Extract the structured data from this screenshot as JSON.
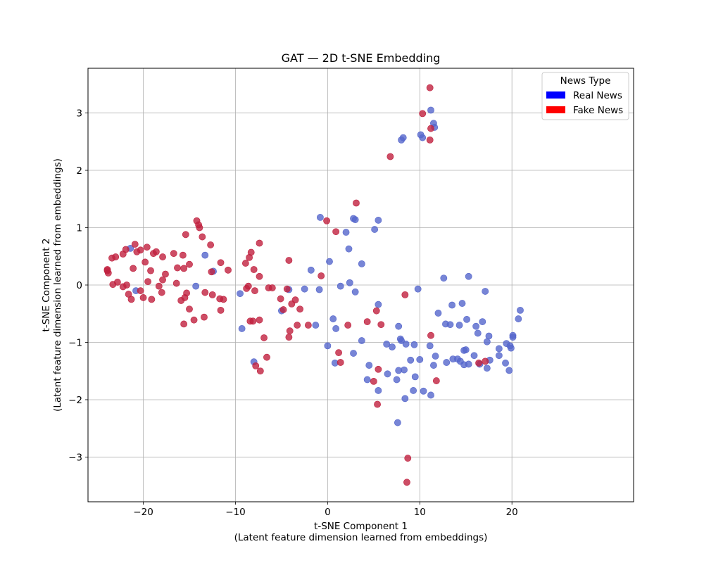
{
  "chart_data": {
    "type": "scatter",
    "title": "GAT — 2D t-SNE Embedding",
    "xlabel": "t-SNE Component 1",
    "xlabel_sub": "(Latent feature dimension learned from embeddings)",
    "ylabel": "t-SNE Component 2",
    "ylabel_sub": "(Latent feature dimension learned from embeddings)",
    "xlim": [
      -26,
      33.2
    ],
    "ylim": [
      -3.78,
      3.78
    ],
    "xticks": [
      -20,
      -10,
      0,
      10,
      20
    ],
    "yticks": [
      -3,
      -2,
      -1,
      0,
      1,
      2,
      3
    ],
    "grid": true,
    "legend": {
      "title": "News Type",
      "placement": "top-right",
      "entries": [
        {
          "label": "Real News",
          "color": "#0000ff"
        },
        {
          "label": "Fake News",
          "color": "#ff0000"
        }
      ]
    },
    "marker_colors": {
      "real": "#5566cc",
      "fake": "#c0213f"
    },
    "series": [
      {
        "name": "Real News",
        "points": [
          [
            -21.4,
            0.64
          ],
          [
            -20.8,
            -0.1
          ],
          [
            -14.3,
            -0.02
          ],
          [
            -13.3,
            0.52
          ],
          [
            -12.4,
            0.24
          ],
          [
            -9.5,
            -0.15
          ],
          [
            -9.3,
            -0.76
          ],
          [
            -8.0,
            -1.34
          ],
          [
            -4.2,
            -0.08
          ],
          [
            -5.0,
            -0.45
          ],
          [
            -2.5,
            -0.07
          ],
          [
            -1.8,
            0.26
          ],
          [
            -1.3,
            -0.7
          ],
          [
            -0.8,
            1.18
          ],
          [
            -0.9,
            -0.08
          ],
          [
            0.2,
            0.41
          ],
          [
            0.0,
            -1.06
          ],
          [
            0.6,
            -0.59
          ],
          [
            0.8,
            -1.36
          ],
          [
            0.9,
            -0.76
          ],
          [
            1.4,
            -0.02
          ],
          [
            2.0,
            0.92
          ],
          [
            2.3,
            0.63
          ],
          [
            2.4,
            0.04
          ],
          [
            2.8,
            1.16
          ],
          [
            3.0,
            1.14
          ],
          [
            3.0,
            -0.12
          ],
          [
            2.8,
            -1.19
          ],
          [
            3.7,
            0.37
          ],
          [
            3.7,
            -0.97
          ],
          [
            4.3,
            -1.65
          ],
          [
            4.5,
            -1.4
          ],
          [
            5.1,
            0.97
          ],
          [
            5.5,
            1.13
          ],
          [
            5.5,
            -0.34
          ],
          [
            5.5,
            -1.84
          ],
          [
            6.4,
            -1.03
          ],
          [
            6.5,
            -1.55
          ],
          [
            7.0,
            -1.08
          ],
          [
            7.5,
            -1.65
          ],
          [
            7.6,
            -2.4
          ],
          [
            7.7,
            -0.72
          ],
          [
            7.7,
            -1.49
          ],
          [
            7.9,
            -0.94
          ],
          [
            8.0,
            -0.97
          ],
          [
            8.3,
            -1.48
          ],
          [
            8.5,
            -1.03
          ],
          [
            8.4,
            -1.98
          ],
          [
            9.0,
            -1.31
          ],
          [
            9.3,
            -1.84
          ],
          [
            9.5,
            -1.6
          ],
          [
            9.4,
            -1.04
          ],
          [
            9.8,
            -0.07
          ],
          [
            10.0,
            -1.3
          ],
          [
            10.4,
            -1.85
          ],
          [
            11.1,
            -1.06
          ],
          [
            11.2,
            -1.92
          ],
          [
            11.5,
            -1.4
          ],
          [
            11.7,
            -1.24
          ],
          [
            12.0,
            -0.49
          ],
          [
            12.6,
            0.12
          ],
          [
            12.8,
            -0.68
          ],
          [
            12.9,
            -1.35
          ],
          [
            13.3,
            -0.69
          ],
          [
            13.5,
            -0.35
          ],
          [
            13.6,
            -1.29
          ],
          [
            14.1,
            -1.29
          ],
          [
            14.3,
            -0.7
          ],
          [
            14.4,
            -1.33
          ],
          [
            14.6,
            -0.32
          ],
          [
            14.8,
            -1.39
          ],
          [
            14.8,
            -1.14
          ],
          [
            15.0,
            -1.13
          ],
          [
            15.1,
            -0.6
          ],
          [
            15.3,
            -1.38
          ],
          [
            15.3,
            0.15
          ],
          [
            15.9,
            -1.23
          ],
          [
            16.1,
            -0.72
          ],
          [
            16.3,
            -0.84
          ],
          [
            16.5,
            -1.38
          ],
          [
            16.8,
            -0.64
          ],
          [
            17.1,
            -0.11
          ],
          [
            17.3,
            -1.45
          ],
          [
            17.3,
            -0.99
          ],
          [
            17.5,
            -0.89
          ],
          [
            17.6,
            -1.31
          ],
          [
            18.6,
            -1.11
          ],
          [
            18.6,
            -1.23
          ],
          [
            19.3,
            -1.36
          ],
          [
            19.4,
            -1.02
          ],
          [
            19.7,
            -1.49
          ],
          [
            19.8,
            -1.06
          ],
          [
            19.9,
            -1.1
          ],
          [
            20.1,
            -0.91
          ],
          [
            20.1,
            -0.88
          ],
          [
            20.7,
            -0.59
          ],
          [
            20.9,
            -0.44
          ],
          [
            8.0,
            2.53
          ],
          [
            8.2,
            2.57
          ],
          [
            10.1,
            2.62
          ],
          [
            10.3,
            2.57
          ],
          [
            11.2,
            3.05
          ],
          [
            11.5,
            2.82
          ],
          [
            11.6,
            2.75
          ]
        ]
      },
      {
        "name": "Fake News",
        "points": [
          [
            -23.9,
            0.25
          ],
          [
            -23.8,
            0.21
          ],
          [
            -23.9,
            0.27
          ],
          [
            -23.4,
            0.47
          ],
          [
            -23.0,
            0.49
          ],
          [
            -23.3,
            0.01
          ],
          [
            -22.8,
            0.05
          ],
          [
            -22.2,
            0.54
          ],
          [
            -21.9,
            0.62
          ],
          [
            -22.2,
            -0.03
          ],
          [
            -21.8,
            0.0
          ],
          [
            -21.6,
            -0.16
          ],
          [
            -21.3,
            -0.25
          ],
          [
            -21.1,
            0.29
          ],
          [
            -20.9,
            0.71
          ],
          [
            -20.7,
            0.58
          ],
          [
            -20.3,
            0.61
          ],
          [
            -20.3,
            -0.1
          ],
          [
            -20.0,
            -0.22
          ],
          [
            -19.8,
            0.4
          ],
          [
            -19.6,
            0.66
          ],
          [
            -19.5,
            0.06
          ],
          [
            -19.2,
            0.25
          ],
          [
            -19.1,
            -0.25
          ],
          [
            -18.9,
            0.55
          ],
          [
            -18.6,
            0.58
          ],
          [
            -18.3,
            -0.02
          ],
          [
            -18.0,
            -0.13
          ],
          [
            -17.9,
            0.09
          ],
          [
            -17.9,
            0.49
          ],
          [
            -17.6,
            0.19
          ],
          [
            -16.7,
            0.55
          ],
          [
            -16.4,
            0.03
          ],
          [
            -16.3,
            0.3
          ],
          [
            -15.9,
            -0.27
          ],
          [
            -15.7,
            0.52
          ],
          [
            -15.6,
            0.29
          ],
          [
            -15.5,
            -0.22
          ],
          [
            -15.6,
            -0.68
          ],
          [
            -15.3,
            -0.14
          ],
          [
            -15.4,
            0.88
          ],
          [
            -15.0,
            0.36
          ],
          [
            -15.0,
            -0.42
          ],
          [
            -14.5,
            -0.61
          ],
          [
            -14.2,
            1.12
          ],
          [
            -14.0,
            1.05
          ],
          [
            -13.9,
            1.0
          ],
          [
            -13.6,
            0.84
          ],
          [
            -13.4,
            -0.56
          ],
          [
            -13.3,
            -0.13
          ],
          [
            -12.7,
            0.7
          ],
          [
            -12.6,
            0.23
          ],
          [
            -12.5,
            -0.17
          ],
          [
            -11.7,
            -0.24
          ],
          [
            -11.6,
            0.39
          ],
          [
            -11.6,
            -0.44
          ],
          [
            -11.3,
            -0.25
          ],
          [
            -10.8,
            0.26
          ],
          [
            -8.9,
            0.38
          ],
          [
            -8.8,
            -0.06
          ],
          [
            -8.6,
            -0.02
          ],
          [
            -8.5,
            0.48
          ],
          [
            -8.4,
            -0.63
          ],
          [
            -8.3,
            0.57
          ],
          [
            -8.1,
            -0.63
          ],
          [
            -8.0,
            0.27
          ],
          [
            -7.9,
            -0.1
          ],
          [
            -7.8,
            -1.41
          ],
          [
            -7.4,
            0.15
          ],
          [
            -7.4,
            0.73
          ],
          [
            -7.4,
            -0.61
          ],
          [
            -7.3,
            -1.5
          ],
          [
            -6.9,
            -0.92
          ],
          [
            -6.6,
            -1.26
          ],
          [
            -6.4,
            -0.05
          ],
          [
            -6.0,
            -0.05
          ],
          [
            -5.1,
            -0.24
          ],
          [
            -4.8,
            -0.43
          ],
          [
            -4.4,
            -0.07
          ],
          [
            -4.2,
            0.43
          ],
          [
            -4.2,
            -0.91
          ],
          [
            -4.1,
            -0.8
          ],
          [
            -3.9,
            -0.33
          ],
          [
            -3.5,
            -0.26
          ],
          [
            -3.3,
            -0.7
          ],
          [
            -3.0,
            -0.42
          ],
          [
            -2.1,
            -0.7
          ],
          [
            -0.7,
            0.16
          ],
          [
            -0.1,
            1.12
          ],
          [
            0.9,
            0.93
          ],
          [
            1.2,
            -1.18
          ],
          [
            1.4,
            -1.35
          ],
          [
            2.2,
            -0.7
          ],
          [
            3.1,
            1.43
          ],
          [
            4.3,
            -0.64
          ],
          [
            5.0,
            -1.68
          ],
          [
            5.3,
            -0.45
          ],
          [
            5.4,
            -2.08
          ],
          [
            5.5,
            -1.47
          ],
          [
            5.8,
            -0.69
          ],
          [
            6.8,
            2.24
          ],
          [
            8.4,
            -0.17
          ],
          [
            8.6,
            -3.44
          ],
          [
            8.7,
            -3.02
          ],
          [
            10.3,
            2.99
          ],
          [
            11.1,
            2.53
          ],
          [
            11.1,
            3.44
          ],
          [
            11.2,
            2.73
          ],
          [
            11.2,
            -0.88
          ],
          [
            11.8,
            -1.67
          ],
          [
            16.4,
            -1.36
          ],
          [
            17.1,
            -1.33
          ]
        ]
      }
    ]
  }
}
